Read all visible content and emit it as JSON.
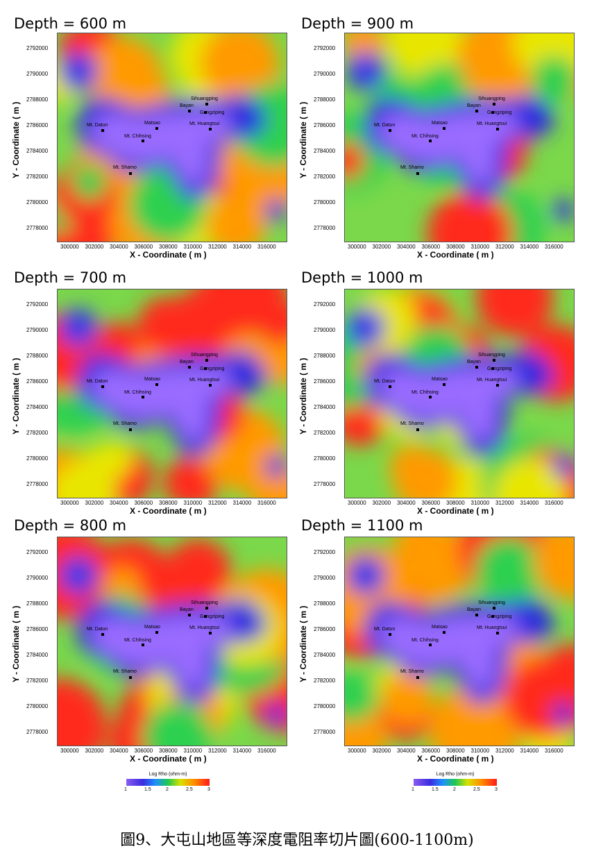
{
  "panels": [
    {
      "title": "Depth = 600 m"
    },
    {
      "title": "Depth = 900 m"
    },
    {
      "title": "Depth = 700 m"
    },
    {
      "title": "Depth = 1000 m"
    },
    {
      "title": "Depth = 800 m"
    },
    {
      "title": "Depth = 1100 m"
    }
  ],
  "axes": {
    "ylabel": "Y - Coordinate ( m )",
    "xlabel": "X - Coordinate ( m )",
    "yticks": [
      "2792000",
      "2790000",
      "2788000",
      "2786000",
      "2784000",
      "2782000",
      "2780000",
      "2778000"
    ],
    "xticks": [
      "300000",
      "302000",
      "304000",
      "306000",
      "308000",
      "310000",
      "312000",
      "314000",
      "316000"
    ]
  },
  "places": [
    "Sihuangping",
    "Bayan",
    "Gangziping",
    "Matsao",
    "Mt. Huangtsui",
    "Mt. Datun",
    "Mt. Chihsing",
    "Mt. Shamo"
  ],
  "legend": {
    "title": "Log Rho (ohm-m)",
    "values": [
      "1",
      "1.5",
      "2",
      "2.5",
      "3"
    ]
  },
  "colors": {
    "low": "#8a5cf0",
    "mid": "#1fc850",
    "high": "#ff1a1a"
  },
  "caption": "圖9、大屯山地區等深度電阻率切片圖(600-1100m)"
}
